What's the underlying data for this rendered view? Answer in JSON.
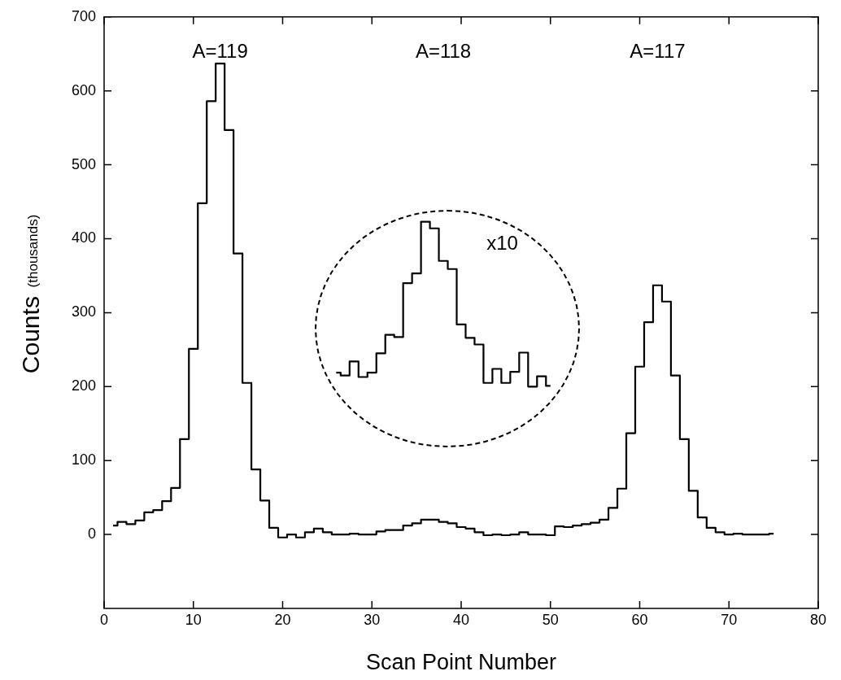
{
  "chart_data": {
    "type": "step",
    "xlabel": "Scan Point Number",
    "ylabel": "Counts (thousands)",
    "xlim": [
      0,
      80
    ],
    "xticks": [
      0,
      10,
      20,
      30,
      40,
      50,
      60,
      70,
      80
    ],
    "ylim": [
      -100,
      700
    ],
    "yticks": [
      0,
      100,
      200,
      300,
      400,
      500,
      600,
      700
    ],
    "grid": false,
    "legend": false,
    "series": [
      {
        "color": "#000000",
        "x": [
          1,
          2,
          3,
          4,
          5,
          6,
          7,
          8,
          9,
          10,
          11,
          12,
          13,
          14,
          15,
          16,
          17,
          18,
          19,
          20,
          21,
          22,
          23,
          24,
          25,
          26,
          27,
          28,
          29,
          30,
          31,
          32,
          33,
          34,
          35,
          36,
          37,
          38,
          39,
          40,
          41,
          42,
          43,
          44,
          45,
          46,
          47,
          48,
          49,
          50,
          51,
          52,
          53,
          54,
          55,
          56,
          57,
          58,
          59,
          60,
          61,
          62,
          63,
          64,
          65,
          66,
          67,
          68,
          69,
          70,
          71,
          72,
          73,
          74,
          75
        ],
        "values": [
          12,
          17,
          14,
          19,
          30,
          33,
          45,
          63,
          129,
          251,
          448,
          586,
          637,
          547,
          380,
          205,
          88,
          46,
          9,
          -4,
          0,
          -4,
          3,
          8,
          3,
          0,
          0,
          1,
          0,
          0,
          4,
          6,
          6,
          12,
          15,
          20,
          20,
          17,
          15,
          10,
          8,
          3,
          -1,
          0,
          -1,
          0,
          3,
          0,
          0,
          -1,
          11,
          10,
          12,
          14,
          16,
          20,
          36,
          62,
          137,
          227,
          287,
          337,
          315,
          215,
          129,
          59,
          23,
          9,
          3,
          0,
          1,
          0,
          0,
          0,
          1
        ]
      },
      {
        "color": "#000000",
        "x": [
          26,
          27,
          28,
          29,
          30,
          31,
          32,
          33,
          34,
          35,
          36,
          37,
          38,
          39,
          40,
          41,
          42,
          43,
          44,
          45,
          46,
          47,
          48,
          49,
          50
        ],
        "values": [
          219,
          215,
          234,
          213,
          219,
          245,
          270,
          267,
          340,
          353,
          423,
          414,
          370,
          359,
          284,
          266,
          257,
          205,
          224,
          205,
          220,
          246,
          200,
          214,
          201
        ]
      }
    ],
    "annotations": [
      "A=119",
      "A=118",
      "A=117",
      "x10"
    ]
  }
}
